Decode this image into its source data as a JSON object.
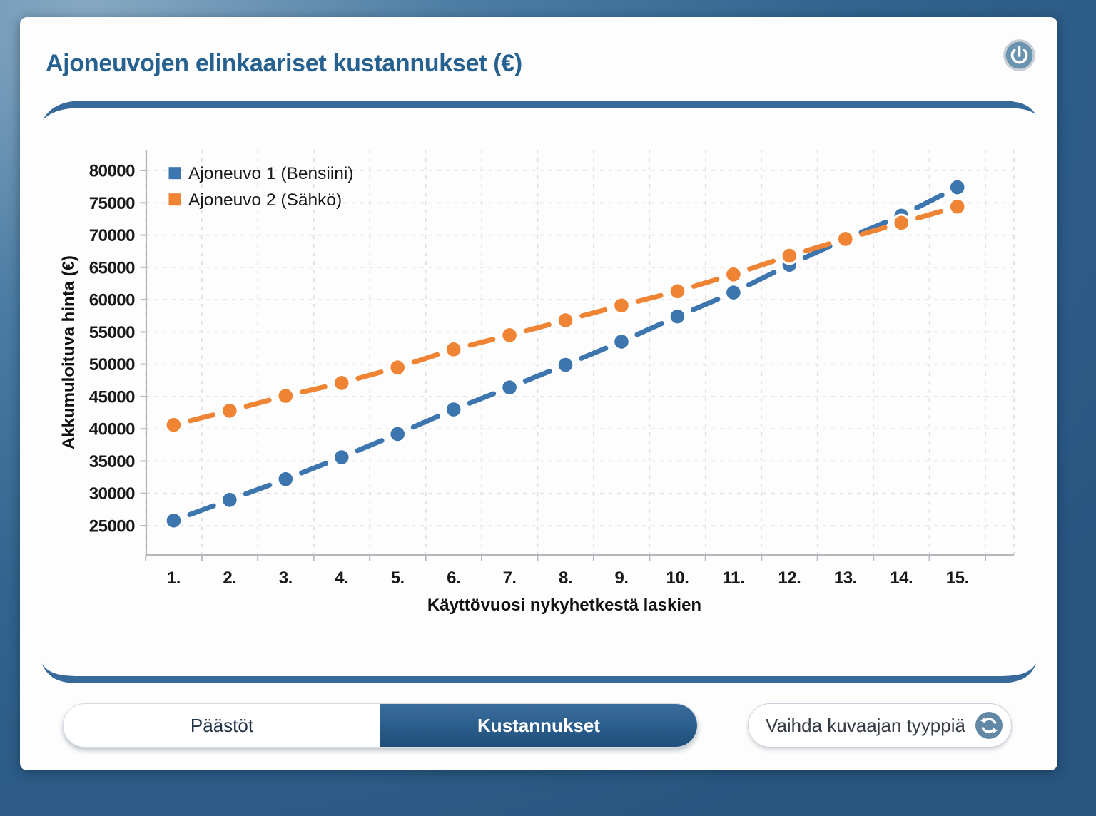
{
  "header": {
    "title": "Ajoneuvojen elinkaariset kustannukset (€)"
  },
  "icons": {
    "power": "power-icon",
    "refresh": "refresh-icon"
  },
  "chart_data": {
    "type": "line",
    "categories": [
      "1.",
      "2.",
      "3.",
      "4.",
      "5.",
      "6.",
      "7.",
      "8.",
      "9.",
      "10.",
      "11.",
      "12.",
      "13.",
      "14.",
      "15."
    ],
    "series": [
      {
        "name": "Ajoneuvo 1 (Bensiini)",
        "color": "#3d76ae",
        "values": [
          25800,
          29000,
          32200,
          35600,
          39200,
          43000,
          46400,
          49900,
          53500,
          57400,
          61100,
          65400,
          69400,
          73000,
          77400
        ]
      },
      {
        "name": "Ajoneuvo 2 (Sähkö)",
        "color": "#ee8434",
        "values": [
          40600,
          42800,
          45100,
          47100,
          49500,
          52300,
          54500,
          56800,
          59100,
          61300,
          63900,
          66800,
          69400,
          71900,
          74400
        ]
      }
    ],
    "xlabel": "Käyttövuosi nykyhetkestä laskien",
    "ylabel": "Akkumuloituva hinta (€)",
    "ylim": [
      25000,
      80000
    ],
    "y_tick_step": 5000,
    "y_ticks": [
      25000,
      30000,
      35000,
      40000,
      45000,
      50000,
      55000,
      60000,
      65000,
      70000,
      75000,
      80000
    ],
    "grid": "dashed",
    "legend_position": "top-left"
  },
  "controls": {
    "tabs": [
      {
        "label": "Päästöt",
        "active": false
      },
      {
        "label": "Kustannukset",
        "active": true
      }
    ],
    "change_chart_type": {
      "label": "Vaihda kuvaajan tyyppiä",
      "icon": "refresh-icon"
    }
  },
  "colors": {
    "title_text": "#27618f",
    "frame_blue": "#2d608d",
    "divider_ribbon": "#38699b",
    "series_blue": "#3d76ae",
    "series_orange": "#ee8434",
    "tab_active_bg": "#2d608f",
    "tab_active_text": "#ffffff",
    "tab_inactive_text": "#243447",
    "icon_circle": "#6288a6",
    "gridline": "#dedede"
  }
}
